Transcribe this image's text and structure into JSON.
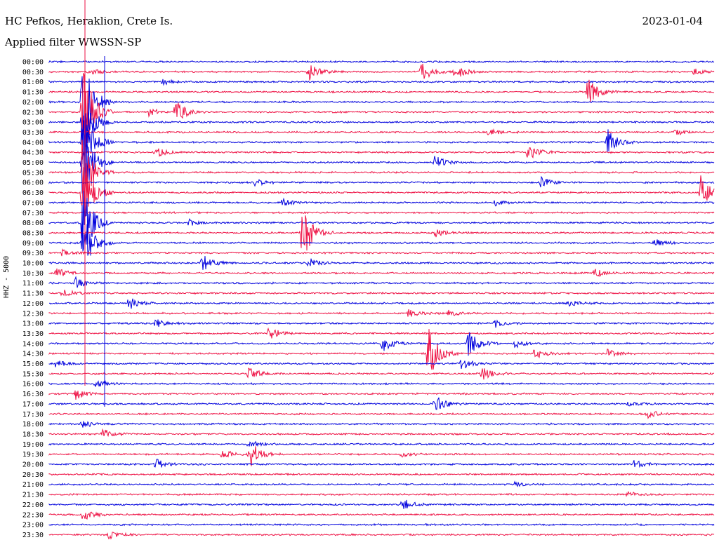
{
  "header": {
    "station": "HC Pefkos, Heraklion, Crete Is.",
    "filter": "Applied filter WWSSN-SP",
    "date": "2023-01-04"
  },
  "colors": {
    "odd_trace": "#0000dd",
    "even_trace": "#ee1144"
  },
  "chart_data": {
    "type": "line",
    "title": "HC Pefkos, Heraklion, Crete Is.",
    "subtitle": "Applied filter WWSSN-SP",
    "date": "2023-01-04",
    "ylabel": "HHZ - 5000",
    "row_labels": [
      "00:00",
      "00:30",
      "01:00",
      "01:30",
      "02:00",
      "02:30",
      "03:00",
      "03:30",
      "04:00",
      "04:30",
      "05:00",
      "05:30",
      "06:00",
      "06:30",
      "07:00",
      "07:30",
      "08:00",
      "08:30",
      "09:00",
      "09:30",
      "10:00",
      "10:30",
      "11:00",
      "11:30",
      "12:00",
      "12:30",
      "13:00",
      "13:30",
      "14:00",
      "14:30",
      "15:00",
      "15:30",
      "16:00",
      "16:30",
      "17:00",
      "17:30",
      "18:00",
      "18:30",
      "19:00",
      "19:30",
      "20:00",
      "20:30",
      "21:00",
      "21:30",
      "22:00",
      "22:30",
      "23:00",
      "23:30"
    ],
    "x_minutes": [
      0,
      30
    ],
    "events": [
      {
        "row": 1,
        "x": 0.06,
        "amp": 6
      },
      {
        "row": 1,
        "x": 0.39,
        "amp": 14
      },
      {
        "row": 1,
        "x": 0.56,
        "amp": 16
      },
      {
        "row": 1,
        "x": 0.61,
        "amp": 12
      },
      {
        "row": 1,
        "x": 0.97,
        "amp": 4
      },
      {
        "row": 2,
        "x": 0.17,
        "amp": 4
      },
      {
        "row": 3,
        "x": 0.81,
        "amp": 22
      },
      {
        "row": 4,
        "x": 0.05,
        "amp": 80
      },
      {
        "row": 5,
        "x": 0.05,
        "amp": 80
      },
      {
        "row": 5,
        "x": 0.19,
        "amp": 18
      },
      {
        "row": 5,
        "x": 0.15,
        "amp": 6
      },
      {
        "row": 6,
        "x": 0.05,
        "amp": 60
      },
      {
        "row": 7,
        "x": 0.66,
        "amp": 5
      },
      {
        "row": 7,
        "x": 0.94,
        "amp": 5
      },
      {
        "row": 8,
        "x": 0.05,
        "amp": 60
      },
      {
        "row": 8,
        "x": 0.84,
        "amp": 18
      },
      {
        "row": 9,
        "x": 0.16,
        "amp": 8
      },
      {
        "row": 9,
        "x": 0.72,
        "amp": 14
      },
      {
        "row": 10,
        "x": 0.05,
        "amp": 60
      },
      {
        "row": 10,
        "x": 0.58,
        "amp": 10
      },
      {
        "row": 11,
        "x": 0.05,
        "amp": 60
      },
      {
        "row": 12,
        "x": 0.31,
        "amp": 6
      },
      {
        "row": 12,
        "x": 0.74,
        "amp": 8
      },
      {
        "row": 13,
        "x": 0.05,
        "amp": 60
      },
      {
        "row": 13,
        "x": 0.98,
        "amp": 24
      },
      {
        "row": 14,
        "x": 0.35,
        "amp": 6
      },
      {
        "row": 14,
        "x": 0.67,
        "amp": 5
      },
      {
        "row": 16,
        "x": 0.05,
        "amp": 60
      },
      {
        "row": 16,
        "x": 0.21,
        "amp": 5
      },
      {
        "row": 17,
        "x": 0.38,
        "amp": 50
      },
      {
        "row": 17,
        "x": 0.58,
        "amp": 6
      },
      {
        "row": 18,
        "x": 0.05,
        "amp": 50
      },
      {
        "row": 18,
        "x": 0.91,
        "amp": 6
      },
      {
        "row": 19,
        "x": 0.02,
        "amp": 5
      },
      {
        "row": 20,
        "x": 0.23,
        "amp": 14
      },
      {
        "row": 20,
        "x": 0.39,
        "amp": 8
      },
      {
        "row": 21,
        "x": 0.01,
        "amp": 8
      },
      {
        "row": 21,
        "x": 0.82,
        "amp": 6
      },
      {
        "row": 22,
        "x": 0.04,
        "amp": 8
      },
      {
        "row": 23,
        "x": 0.02,
        "amp": 6
      },
      {
        "row": 24,
        "x": 0.12,
        "amp": 10
      },
      {
        "row": 24,
        "x": 0.78,
        "amp": 6
      },
      {
        "row": 25,
        "x": 0.54,
        "amp": 6
      },
      {
        "row": 25,
        "x": 0.6,
        "amp": 5
      },
      {
        "row": 26,
        "x": 0.16,
        "amp": 8
      },
      {
        "row": 26,
        "x": 0.67,
        "amp": 6
      },
      {
        "row": 27,
        "x": 0.33,
        "amp": 12
      },
      {
        "row": 28,
        "x": 0.5,
        "amp": 14
      },
      {
        "row": 28,
        "x": 0.63,
        "amp": 22
      },
      {
        "row": 28,
        "x": 0.7,
        "amp": 6
      },
      {
        "row": 29,
        "x": 0.57,
        "amp": 40
      },
      {
        "row": 29,
        "x": 0.73,
        "amp": 8
      },
      {
        "row": 29,
        "x": 0.84,
        "amp": 6
      },
      {
        "row": 30,
        "x": 0.01,
        "amp": 5
      },
      {
        "row": 30,
        "x": 0.62,
        "amp": 8
      },
      {
        "row": 31,
        "x": 0.3,
        "amp": 10
      },
      {
        "row": 31,
        "x": 0.65,
        "amp": 10
      },
      {
        "row": 32,
        "x": 0.07,
        "amp": 6
      },
      {
        "row": 33,
        "x": 0.04,
        "amp": 8
      },
      {
        "row": 34,
        "x": 0.58,
        "amp": 14
      },
      {
        "row": 34,
        "x": 0.87,
        "amp": 4
      },
      {
        "row": 35,
        "x": 0.9,
        "amp": 6
      },
      {
        "row": 36,
        "x": 0.05,
        "amp": 6
      },
      {
        "row": 37,
        "x": 0.08,
        "amp": 8
      },
      {
        "row": 38,
        "x": 0.3,
        "amp": 6
      },
      {
        "row": 39,
        "x": 0.3,
        "amp": 24
      },
      {
        "row": 39,
        "x": 0.26,
        "amp": 8
      },
      {
        "row": 39,
        "x": 0.53,
        "amp": 6
      },
      {
        "row": 40,
        "x": 0.16,
        "amp": 8
      },
      {
        "row": 40,
        "x": 0.88,
        "amp": 6
      },
      {
        "row": 42,
        "x": 0.7,
        "amp": 4
      },
      {
        "row": 43,
        "x": 0.87,
        "amp": 4
      },
      {
        "row": 44,
        "x": 0.53,
        "amp": 10
      },
      {
        "row": 45,
        "x": 0.05,
        "amp": 10
      },
      {
        "row": 47,
        "x": 0.09,
        "amp": 6
      }
    ]
  }
}
